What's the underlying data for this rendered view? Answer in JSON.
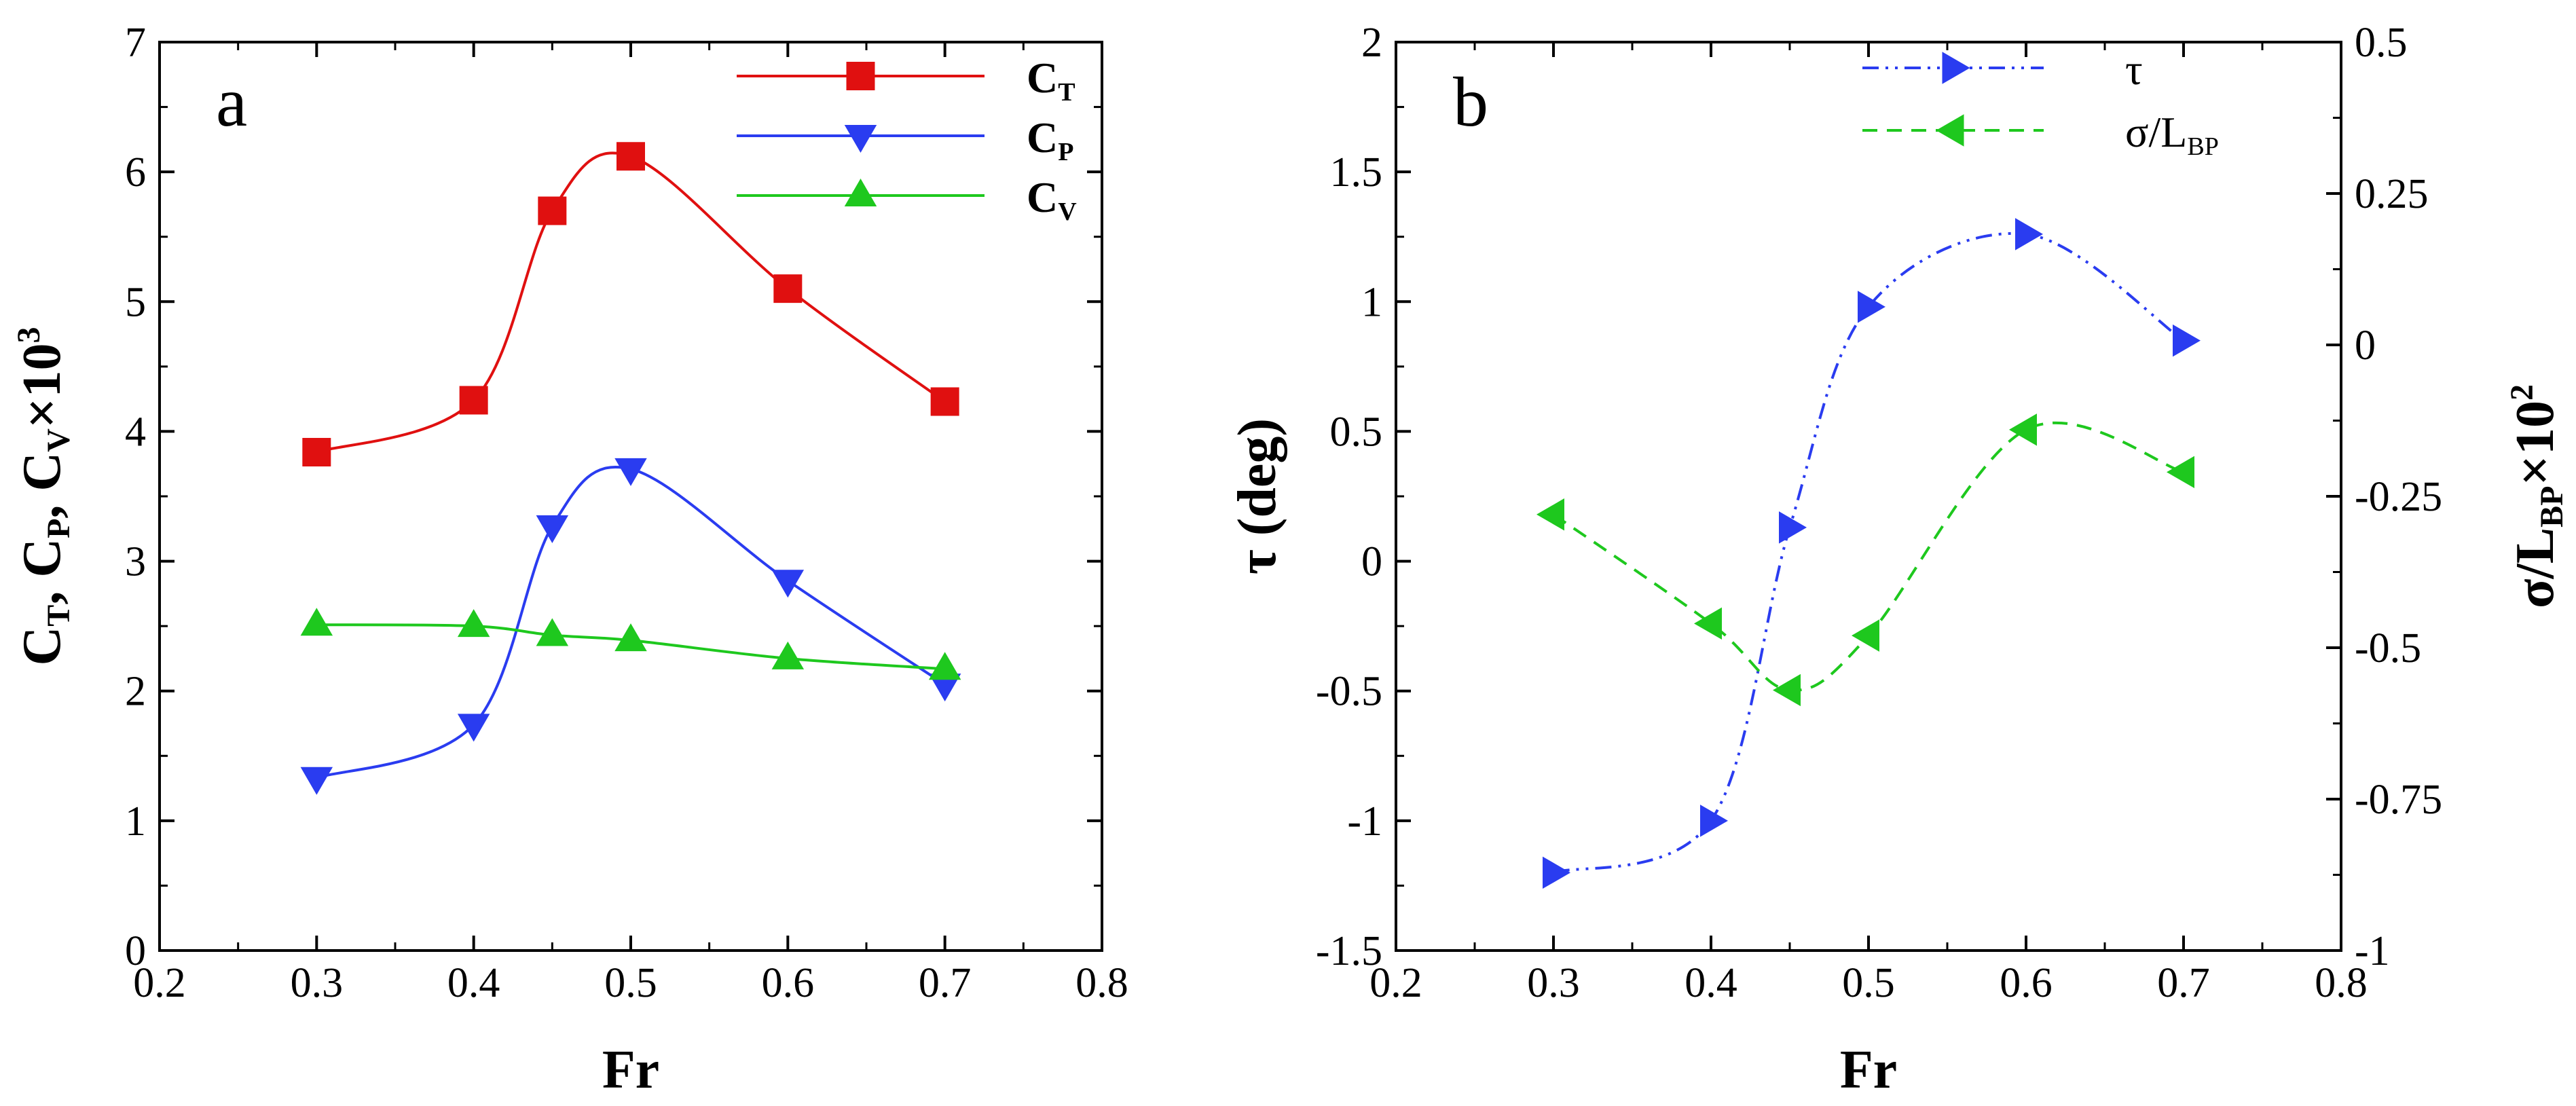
{
  "chart_data": [
    {
      "panel": "a",
      "type": "line",
      "xlabel": "Fr",
      "ylabel": "C_T, C_P, C_V×10^3",
      "xlim": [
        0.2,
        0.8
      ],
      "ylim": [
        0,
        7
      ],
      "xticks": [
        0.2,
        0.3,
        0.4,
        0.5,
        0.6,
        0.7,
        0.8
      ],
      "yticks": [
        0,
        1,
        2,
        3,
        4,
        5,
        6,
        7
      ],
      "x": [
        0.3,
        0.4,
        0.45,
        0.5,
        0.6,
        0.7
      ],
      "grid": false,
      "legend": "top-right",
      "series": [
        {
          "name": "CT",
          "label_main": "C",
          "label_sub": "T",
          "color": "#e01010",
          "marker": "square",
          "dash": "",
          "values": [
            3.84,
            4.24,
            5.7,
            6.12,
            5.1,
            4.23
          ]
        },
        {
          "name": "CP",
          "label_main": "C",
          "label_sub": "P",
          "color": "#2a3cf0",
          "marker": "triangle-down",
          "dash": "",
          "values": [
            1.33,
            1.74,
            3.27,
            3.71,
            2.85,
            2.05
          ]
        },
        {
          "name": "CV",
          "label_main": "C",
          "label_sub": "V",
          "color": "#1ec81e",
          "marker": "triangle-up",
          "dash": "",
          "values": [
            2.51,
            2.5,
            2.43,
            2.39,
            2.25,
            2.17
          ]
        }
      ]
    },
    {
      "panel": "b",
      "type": "line",
      "xlabel": "Fr",
      "ylabel": "τ (deg)",
      "y2label": "σ/L_BP×10^2",
      "xlim": [
        0.2,
        0.8
      ],
      "ylim": [
        -1.5,
        2
      ],
      "y2lim": [
        -1,
        0.5
      ],
      "xticks": [
        0.2,
        0.3,
        0.4,
        0.5,
        0.6,
        0.7,
        0.8
      ],
      "yticks": [
        -1.5,
        -1,
        -0.5,
        0,
        0.5,
        1,
        1.5,
        2
      ],
      "y2ticks": [
        -1,
        -0.75,
        -0.5,
        -0.25,
        0,
        0.25,
        0.5
      ],
      "x": [
        0.3,
        0.4,
        0.45,
        0.5,
        0.6,
        0.7
      ],
      "grid": false,
      "legend": "top-right",
      "series": [
        {
          "name": "τ",
          "label_main": "τ",
          "label_sub": "",
          "axis": "left",
          "color": "#2a3cf0",
          "marker": "triangle-right",
          "dash": "24,10,4,10,4,10",
          "values": [
            -1.2,
            -1.0,
            0.13,
            0.98,
            1.26,
            0.85
          ]
        },
        {
          "name": "σ/LBP",
          "label_main": "σ/L",
          "label_sub": "BP",
          "axis": "right",
          "color": "#1ec81e",
          "marker": "triangle-left",
          "dash": "22,14",
          "values": [
            -0.28,
            -0.46,
            -0.57,
            -0.48,
            -0.14,
            -0.21
          ]
        }
      ]
    }
  ],
  "labels": {
    "panel_a": "a",
    "panel_b": "b",
    "a_xlabel": "Fr",
    "b_xlabel": "Fr",
    "a_ylabel_main": "C",
    "a_ylabel_sub1": "T",
    "a_ylabel_sub2": "P",
    "a_ylabel_sub3": "V",
    "a_ylabel_times": "×10",
    "a_ylabel_exp": "3",
    "b_ylabel_tau": "τ  (deg)",
    "b_y2label_main": "σ/L",
    "b_y2label_sub": "BP",
    "b_y2label_times": "×10",
    "b_y2label_exp": "2"
  }
}
